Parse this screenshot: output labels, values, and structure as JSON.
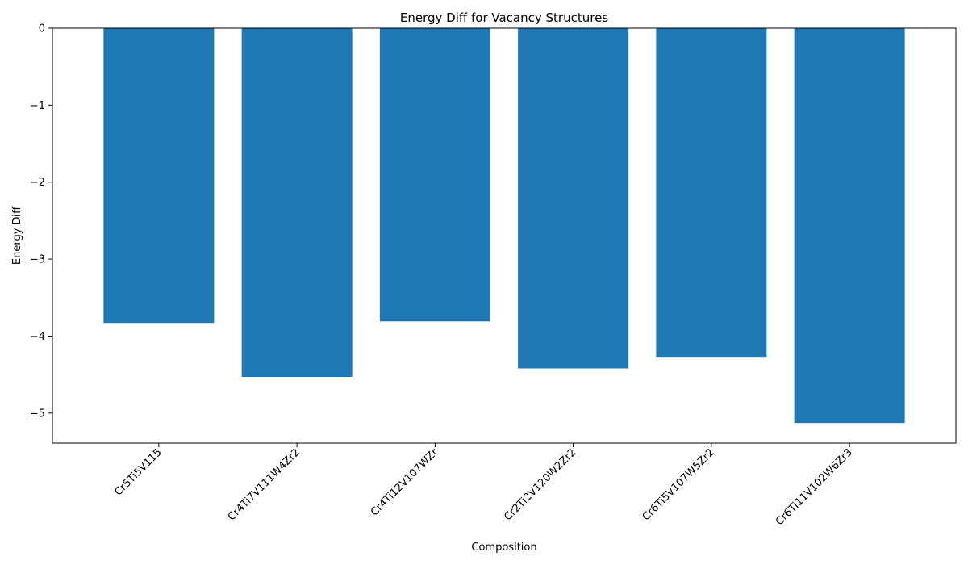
{
  "chart_data": {
    "type": "bar",
    "title": "Energy Diff for Vacancy Structures",
    "xlabel": "Composition",
    "ylabel": "Energy Diff",
    "categories": [
      "Cr5Ti5V115",
      "Cr4Ti7V111W4Zr2",
      "Cr4Ti12V107WZr",
      "Cr2Ti2V120W2Zr2",
      "Cr6Ti5V107W5Zr2",
      "Cr6Ti11V102W6Zr3"
    ],
    "values": [
      -3.83,
      -4.53,
      -3.81,
      -4.42,
      -4.27,
      -5.13
    ],
    "ylim": [
      -5.39,
      0
    ],
    "yticks": [
      0,
      -1,
      -2,
      -3,
      -4,
      -5
    ],
    "ytick_labels": [
      "0",
      "−1",
      "−2",
      "−3",
      "−4",
      "−5"
    ],
    "grid": false,
    "bar_color": "#1f77b4"
  }
}
